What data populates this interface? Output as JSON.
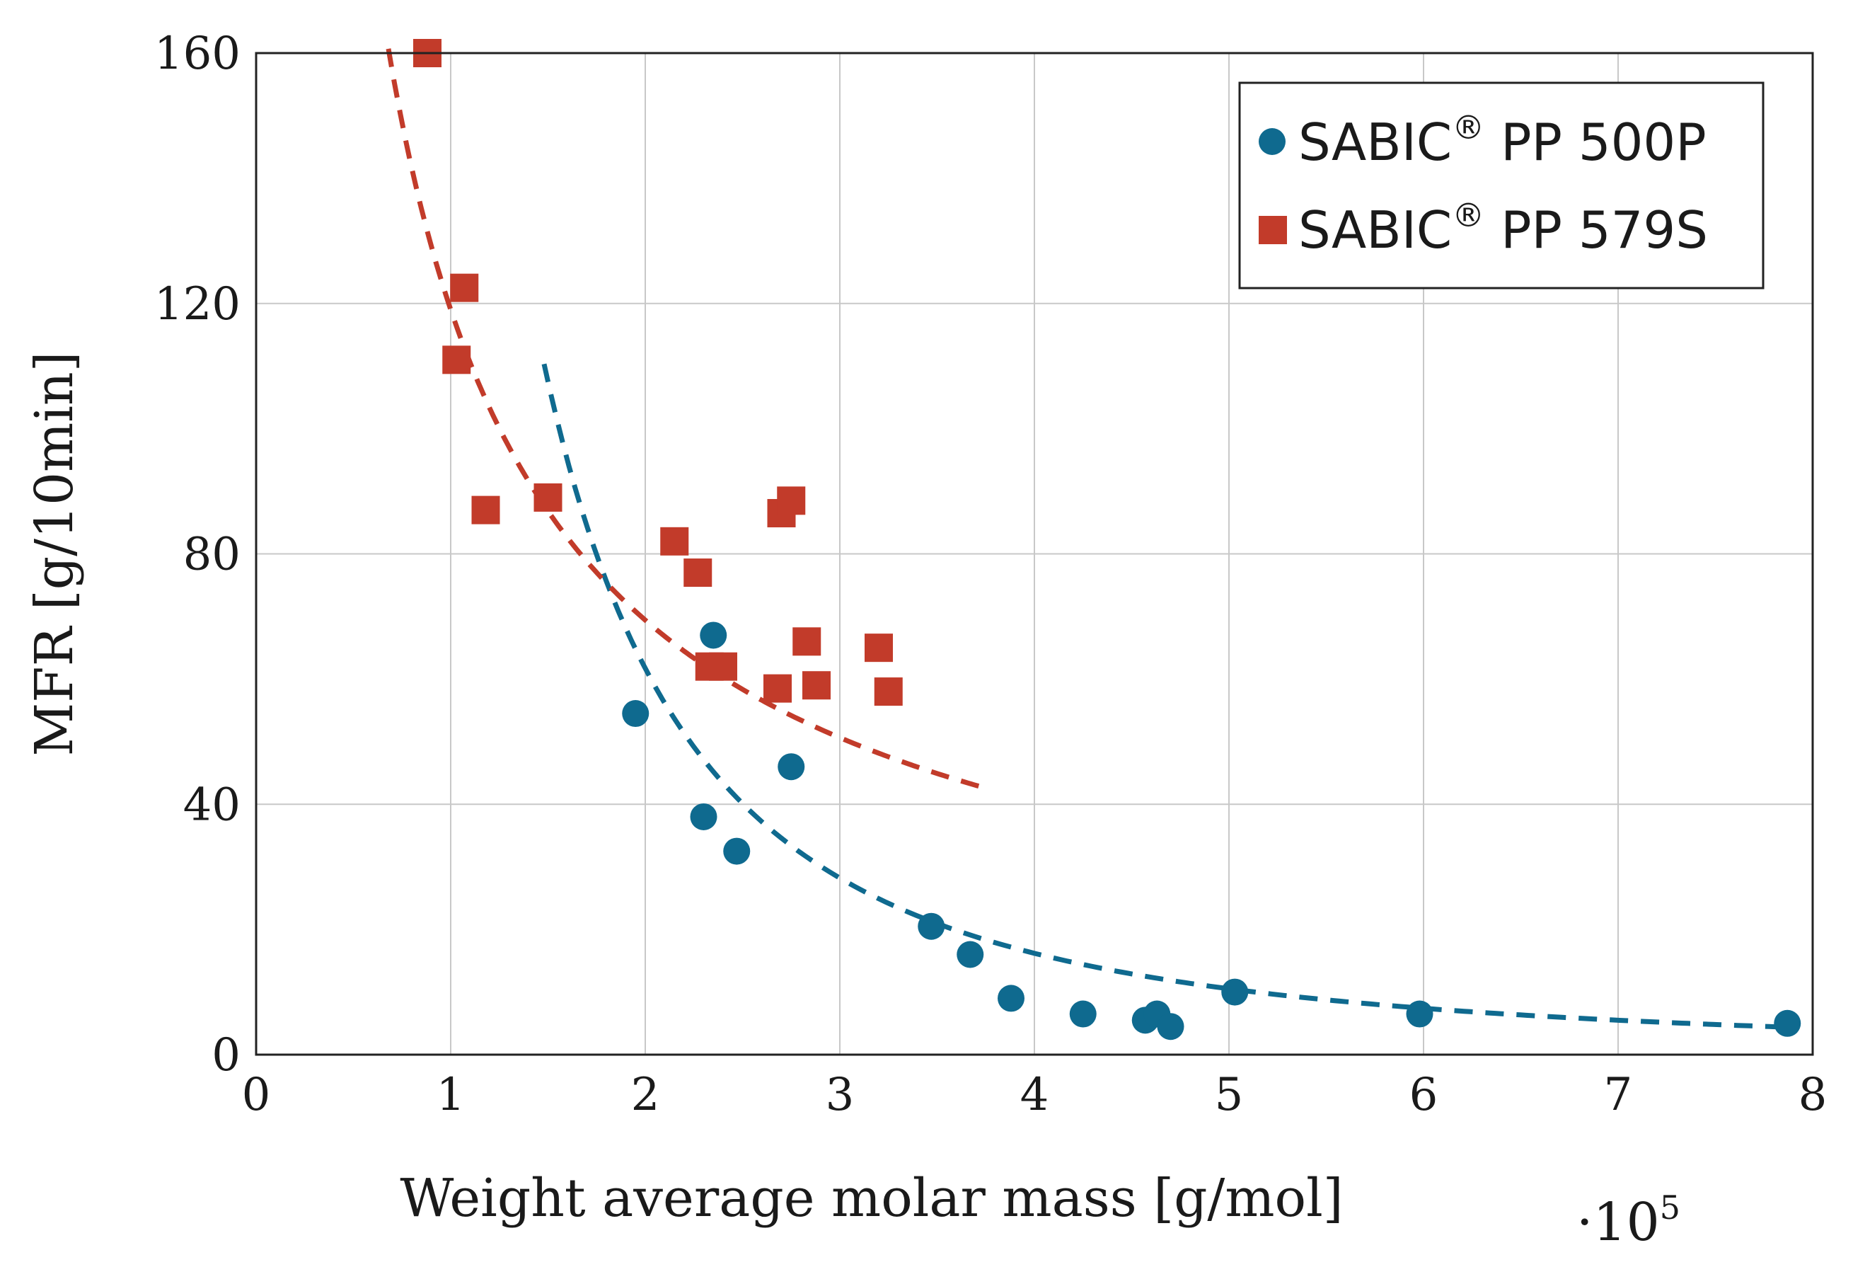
{
  "chart_data": {
    "type": "scatter",
    "title": "",
    "xlabel": "Weight average molar mass [g/mol]",
    "x_multiplier": {
      "prefix": "·10",
      "exponent": "5"
    },
    "ylabel": "MFR [g/10min]",
    "xlim": [
      0,
      8
    ],
    "ylim": [
      0,
      160
    ],
    "xticks": [
      0,
      1,
      2,
      3,
      4,
      5,
      6,
      7,
      8
    ],
    "yticks": [
      0,
      40,
      80,
      120,
      160
    ],
    "grid": true,
    "legend_position": "top-right",
    "series": [
      {
        "name": "SABIC® PP 500P",
        "name_parts": [
          "SABIC",
          "®",
          " PP 500P"
        ],
        "marker": "circle",
        "color": "#0f6a8f",
        "points": [
          {
            "x": 1.95,
            "y": 54.5
          },
          {
            "x": 2.35,
            "y": 67
          },
          {
            "x": 2.3,
            "y": 38
          },
          {
            "x": 2.47,
            "y": 32.5
          },
          {
            "x": 2.75,
            "y": 46
          },
          {
            "x": 3.47,
            "y": 20.5
          },
          {
            "x": 3.67,
            "y": 16
          },
          {
            "x": 3.88,
            "y": 9
          },
          {
            "x": 4.25,
            "y": 6.5
          },
          {
            "x": 4.57,
            "y": 5.5
          },
          {
            "x": 4.63,
            "y": 6.5
          },
          {
            "x": 4.7,
            "y": 4.5
          },
          {
            "x": 5.03,
            "y": 10
          },
          {
            "x": 5.98,
            "y": 6.5
          },
          {
            "x": 7.87,
            "y": 5
          }
        ],
        "fit": {
          "form": "y = a / x^b",
          "a": 235.13,
          "b": 1.93,
          "x_range": [
            1.48,
            7.87
          ]
        }
      },
      {
        "name": "SABIC® PP 579S",
        "name_parts": [
          "SABIC",
          "®",
          " PP 579S"
        ],
        "marker": "square",
        "color": "#c23b2a",
        "points": [
          {
            "x": 0.88,
            "y": 160
          },
          {
            "x": 1.07,
            "y": 122.5
          },
          {
            "x": 1.03,
            "y": 111
          },
          {
            "x": 1.18,
            "y": 87
          },
          {
            "x": 1.5,
            "y": 89
          },
          {
            "x": 2.15,
            "y": 82
          },
          {
            "x": 2.27,
            "y": 77
          },
          {
            "x": 2.33,
            "y": 62
          },
          {
            "x": 2.4,
            "y": 62
          },
          {
            "x": 2.7,
            "y": 86.5
          },
          {
            "x": 2.75,
            "y": 88.5
          },
          {
            "x": 2.68,
            "y": 58.5
          },
          {
            "x": 2.83,
            "y": 66
          },
          {
            "x": 2.88,
            "y": 59
          },
          {
            "x": 3.2,
            "y": 65
          },
          {
            "x": 3.25,
            "y": 58
          }
        ],
        "fit": {
          "form": "y = a / x^b",
          "a": 119.04,
          "b": 0.778,
          "x_range": [
            0.68,
            3.75
          ]
        }
      }
    ]
  }
}
